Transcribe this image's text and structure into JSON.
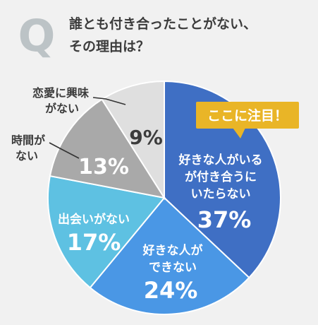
{
  "header": {
    "q_letter": "Q",
    "title_line1": "誰とも付き合ったことがない、",
    "title_line2": "その理由は？"
  },
  "colors": {
    "background": "#f1f1f1",
    "title": "#3c3c3c",
    "q_letter": "#bcc3c6",
    "callout_bg": "#e9b527",
    "callout_text": "#ffffff",
    "pct_text": "#ffffff",
    "outside_label": "#3c3c3c"
  },
  "callout": {
    "text": "ここに注目！"
  },
  "chart_data": {
    "type": "pie",
    "slices": [
      {
        "label_lines": [
          "好きな人がいる",
          "が付き合うに",
          "いたらない"
        ],
        "value": 37,
        "pct_label": "37%",
        "color": "#3f6fc4"
      },
      {
        "label_lines": [
          "好きな人が",
          "できない"
        ],
        "value": 24,
        "pct_label": "24%",
        "color": "#4a97e5"
      },
      {
        "label_lines": [
          "出会いがない"
        ],
        "value": 17,
        "pct_label": "17%",
        "color": "#5ec1e2"
      },
      {
        "label_lines": [
          "時間が",
          "ない"
        ],
        "value": 13,
        "pct_label": "13%",
        "color": "#a9a9a9"
      },
      {
        "label_lines": [
          "恋愛に興味",
          "がない"
        ],
        "value": 9,
        "pct_label": "9%",
        "color": "#dfdfdf"
      }
    ]
  }
}
